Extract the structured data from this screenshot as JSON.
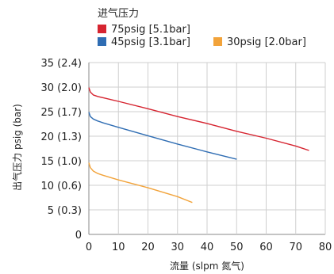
{
  "chart_data": {
    "type": "line",
    "legend_title": "进气压力",
    "xlabel": "流量 (slpm 氮气)",
    "ylabel": "出气压力 psig (bar)",
    "xlim": [
      0,
      80
    ],
    "ylim": [
      0,
      35
    ],
    "x_ticks": [
      "0",
      "10",
      "20",
      "30",
      "40",
      "50",
      "60",
      "70",
      "80"
    ],
    "y_ticks": [
      "0",
      "5 (0.3)",
      "10 (0.6)",
      "15 (1.0)",
      "20 (1.3)",
      "25 (1.7)",
      "30 (2.0)",
      "35 (2.4)"
    ],
    "grid": true,
    "legend_placement": "top",
    "series": [
      {
        "name": "75psig [5.1bar]",
        "color": "#d62430",
        "x": [
          0,
          0.5,
          1.5,
          3,
          5,
          10,
          20,
          30,
          40,
          50,
          60,
          70,
          74.5
        ],
        "y": [
          29.9,
          29.0,
          28.4,
          28.1,
          27.8,
          27.1,
          25.6,
          24.0,
          22.6,
          21.0,
          19.6,
          18.0,
          17.1
        ]
      },
      {
        "name": "45psig [3.1bar]",
        "color": "#2f6db3",
        "x": [
          0,
          0.5,
          1.5,
          3,
          5,
          10,
          20,
          30,
          40,
          50
        ],
        "y": [
          24.9,
          24.0,
          23.5,
          23.1,
          22.7,
          21.8,
          20.1,
          18.4,
          16.8,
          15.3
        ]
      },
      {
        "name": "30psig [2.0bar]",
        "color": "#f2a33a",
        "x": [
          0,
          0.5,
          1.5,
          3,
          5,
          10,
          20,
          25,
          30,
          35
        ],
        "y": [
          14.6,
          13.6,
          12.9,
          12.4,
          12.0,
          11.1,
          9.5,
          8.6,
          7.7,
          6.5
        ]
      }
    ]
  }
}
